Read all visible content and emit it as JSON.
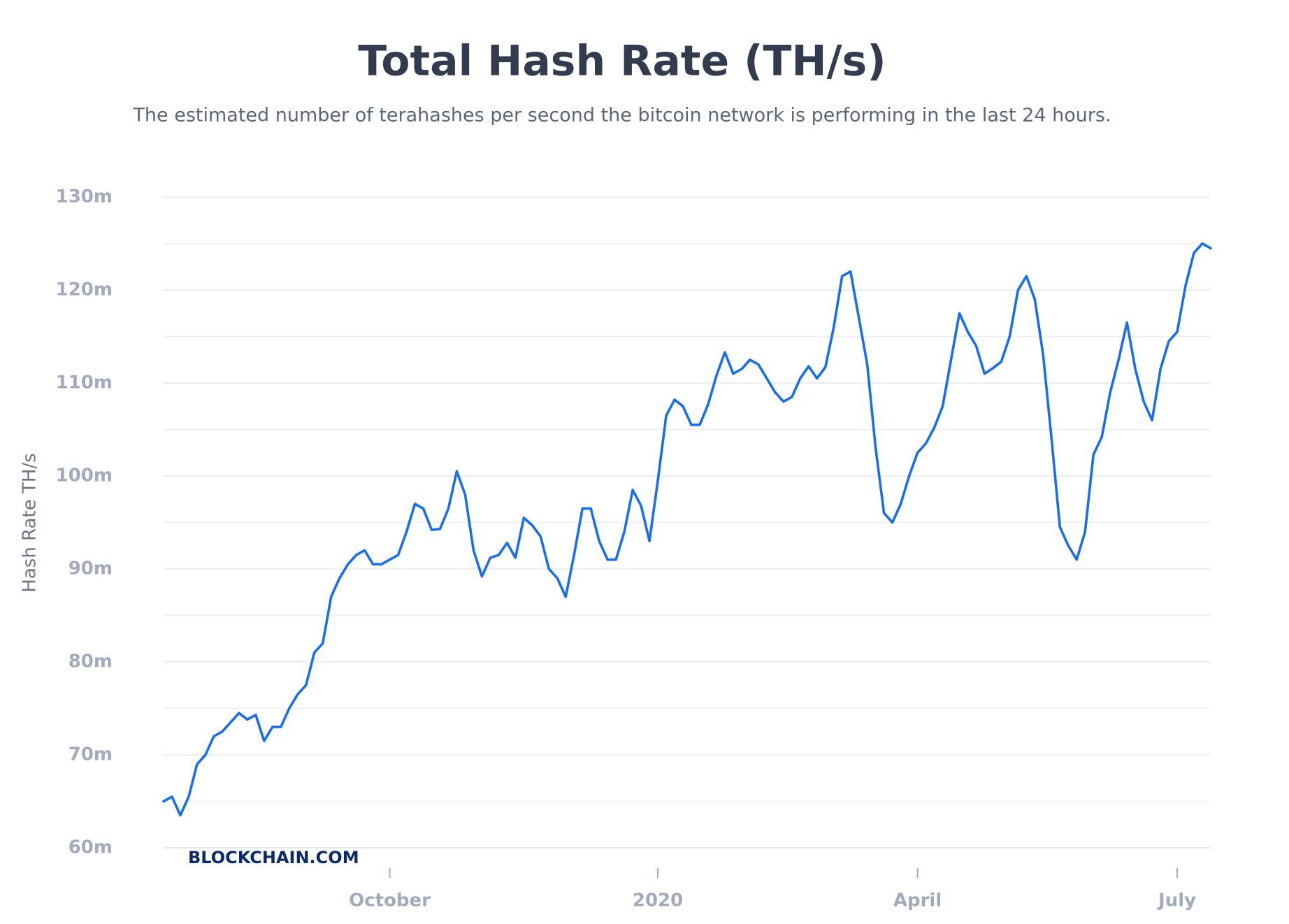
{
  "chart_data": {
    "type": "line",
    "title": "Total Hash Rate (TH/s)",
    "subtitle": "The estimated number of terahashes per second the bitcoin network is performing in the last 24 hours.",
    "ylabel": "Hash Rate TH/s",
    "watermark": "BLOCKCHAIN.COM",
    "categories": [
      null,
      null,
      null,
      null,
      null,
      null,
      null,
      null,
      null,
      null,
      null,
      null,
      null,
      null,
      null,
      null,
      null,
      null,
      null,
      null,
      null,
      null,
      null,
      null,
      null,
      null,
      null,
      "October",
      null,
      null,
      null,
      null,
      null,
      null,
      null,
      null,
      null,
      null,
      null,
      null,
      null,
      null,
      null,
      null,
      null,
      null,
      null,
      null,
      null,
      null,
      null,
      null,
      null,
      null,
      null,
      null,
      null,
      null,
      null,
      "2020",
      null,
      null,
      null,
      null,
      null,
      null,
      null,
      null,
      null,
      null,
      null,
      null,
      null,
      null,
      null,
      null,
      null,
      null,
      null,
      null,
      null,
      null,
      null,
      null,
      null,
      null,
      null,
      null,
      null,
      null,
      "April",
      null,
      null,
      null,
      null,
      null,
      null,
      null,
      null,
      null,
      null,
      null,
      null,
      null,
      null,
      null,
      null,
      null,
      null,
      null,
      null,
      null,
      null,
      null,
      null,
      null,
      null,
      null,
      null,
      null,
      null,
      "July",
      null,
      null,
      null,
      null
    ],
    "series": [
      {
        "name": "Hash Rate",
        "color": "#1a6fe8",
        "values": [
          65,
          65.5,
          63.5,
          65.5,
          69,
          70,
          72,
          72.5,
          73.5,
          74.5,
          73.8,
          74.3,
          71.5,
          73,
          73,
          75,
          76.5,
          77.5,
          81,
          82,
          87,
          89,
          90.5,
          91.5,
          92,
          90.5,
          90.5,
          91,
          91.5,
          94,
          97,
          96.5,
          94.2,
          94.3,
          96.5,
          100.5,
          98,
          92,
          89.2,
          91.2,
          91.5,
          92.8,
          91.2,
          95.5,
          94.7,
          93.5,
          90,
          89,
          87,
          91.5,
          96.5,
          96.5,
          93,
          91,
          91,
          94,
          98.5,
          96.8,
          93,
          99.5,
          106.5,
          108.2,
          107.5,
          105.5,
          105.5,
          107.7,
          110.8,
          113.3,
          111,
          111.5,
          112.5,
          112,
          110.5,
          109,
          108,
          108.5,
          110.5,
          111.8,
          110.5,
          111.7,
          116,
          121.5,
          122,
          117,
          112,
          103,
          96,
          95,
          97,
          100,
          102.5,
          103.5,
          105.2,
          107.5,
          112.5,
          117.5,
          115.5,
          114,
          111,
          111.6,
          112.3,
          115,
          120,
          121.5,
          119,
          113,
          104,
          94.5,
          92.5,
          91,
          94,
          102.3,
          104.2,
          109,
          112.5,
          116.5,
          111.5,
          108,
          106,
          111.5,
          114.5,
          115.5,
          120.5,
          124,
          125,
          124.5
        ]
      }
    ],
    "ylim": [
      60,
      130
    ],
    "yticks": [
      {
        "value": 60,
        "label": "60m"
      },
      {
        "value": 70,
        "label": "70m"
      },
      {
        "value": 80,
        "label": "80m"
      },
      {
        "value": 90,
        "label": "90m"
      },
      {
        "value": 100,
        "label": "100m"
      },
      {
        "value": 110,
        "label": "110m"
      },
      {
        "value": 120,
        "label": "120m"
      },
      {
        "value": 130,
        "label": "130m"
      }
    ],
    "minor_yticks": [
      65,
      75,
      85,
      95,
      105,
      115,
      125
    ],
    "grid": true
  }
}
